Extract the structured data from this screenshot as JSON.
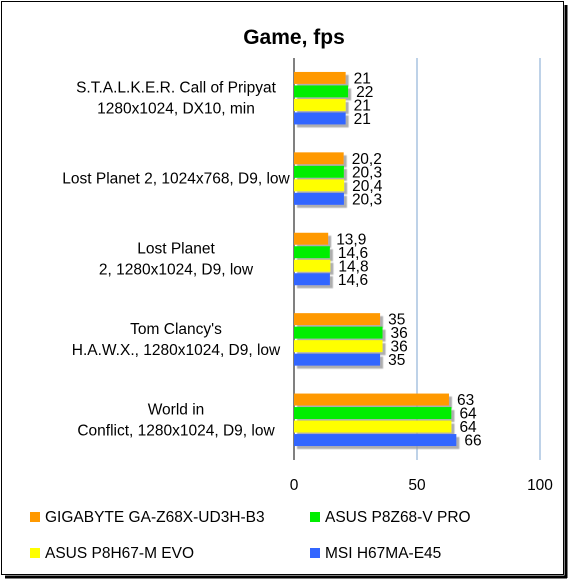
{
  "chart_data": {
    "type": "bar",
    "orientation": "horizontal",
    "title": "Game, fps",
    "xlim": [
      0,
      100
    ],
    "x_ticks": [
      "0",
      "50",
      "100"
    ],
    "grid": true,
    "legend_position": "bottom",
    "categories": [
      [
        "S.T.A.L.K.E.R. Call of Pripyat",
        "1280x1024, DX10, min"
      ],
      [
        "Lost Planet 2, 1024x768, D9, low"
      ],
      [
        "Lost Planet",
        "2, 1280x1024, D9, low"
      ],
      [
        "Tom Clancy's",
        "H.A.W.X., 1280x1024, D9, low"
      ],
      [
        "World in",
        "Conflict, 1280x1024, D9, low"
      ]
    ],
    "series": [
      {
        "name": "GIGABYTE GA-Z68X-UD3H-B3",
        "color": "#ff9900",
        "values": [
          21,
          20.2,
          13.9,
          35,
          63
        ],
        "labels": [
          "21",
          "20,2",
          "13,9",
          "35",
          "63"
        ]
      },
      {
        "name": "ASUS P8Z68-V PRO",
        "color": "#00ee00",
        "values": [
          22,
          20.3,
          14.6,
          36,
          64
        ],
        "labels": [
          "22",
          "20,3",
          "14,6",
          "36",
          "64"
        ]
      },
      {
        "name": "ASUS P8H67-M EVO",
        "color": "#ffff00",
        "values": [
          21,
          20.4,
          14.8,
          36,
          64
        ],
        "labels": [
          "21",
          "20,4",
          "14,8",
          "36",
          "64"
        ]
      },
      {
        "name": "MSI H67MA-E45",
        "color": "#3366ff",
        "values": [
          21,
          20.3,
          14.6,
          35,
          66
        ],
        "labels": [
          "21",
          "20,3",
          "14,6",
          "35",
          "66"
        ]
      }
    ]
  }
}
